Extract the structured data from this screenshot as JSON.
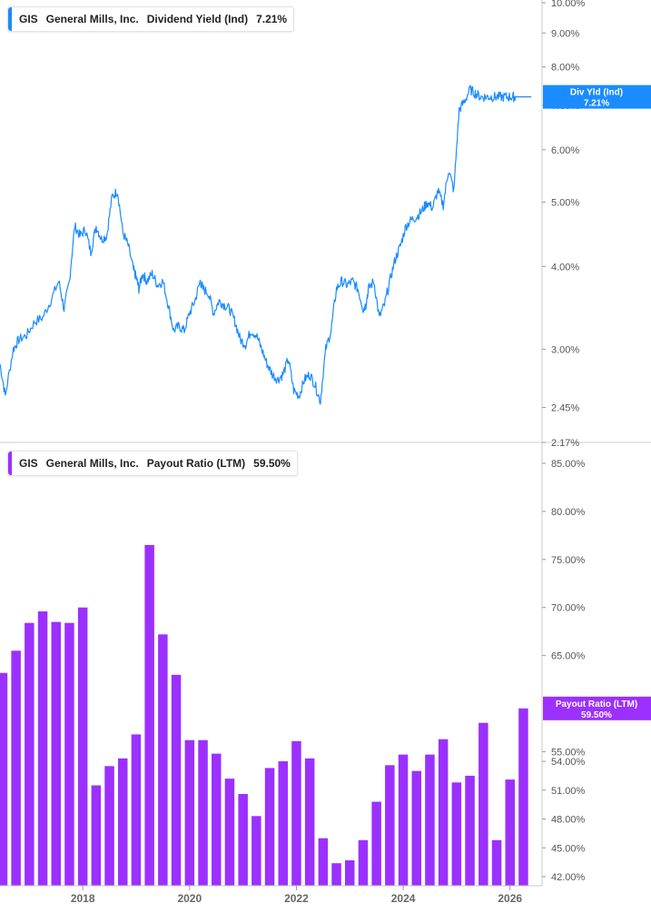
{
  "top_legend": {
    "ticker": "GIS",
    "company": "General Mills, Inc.",
    "metric": "Dividend Yield (Ind)",
    "value": "7.21%"
  },
  "bottom_legend": {
    "ticker": "GIS",
    "company": "General Mills, Inc.",
    "metric": "Payout Ratio (LTM)",
    "value": "59.50%"
  },
  "colors": {
    "yield_line": "#1a8cff",
    "payout_bar": "#9b30ff",
    "axis": "#bbbbbb"
  },
  "chart_data": [
    {
      "type": "line",
      "title": "GIS General Mills, Inc. Dividend Yield (Ind) 7.21%",
      "scale": "log",
      "ylim": [
        2.17,
        10.0
      ],
      "ytick_labels": [
        "10.00%",
        "9.00%",
        "8.00%",
        "7.00%",
        "6.00%",
        "5.00%",
        "4.00%",
        "3.00%",
        "2.45%",
        "2.17%"
      ],
      "ytick_values": [
        10.0,
        9.0,
        8.0,
        7.0,
        6.0,
        5.0,
        4.0,
        3.0,
        2.45,
        2.17
      ],
      "xlim": [
        2016.45,
        2026.6
      ],
      "badge": {
        "label": "Div Yld (Ind)",
        "value": "7.21%"
      },
      "series": [
        {
          "x": [
            2016.45,
            2016.55,
            2016.7,
            2016.8,
            2016.95,
            2017.1,
            2017.25,
            2017.4,
            2017.55,
            2017.65,
            2017.75,
            2017.85,
            2017.95,
            2018.05,
            2018.15,
            2018.25,
            2018.35,
            2018.45,
            2018.55,
            2018.65,
            2018.75,
            2018.85,
            2018.95,
            2019.0,
            2019.05,
            2019.12,
            2019.2,
            2019.3,
            2019.4,
            2019.5,
            2019.6,
            2019.7,
            2019.8,
            2019.9,
            2020.0,
            2020.1,
            2020.2,
            2020.25,
            2020.35,
            2020.45,
            2020.55,
            2020.65,
            2020.75,
            2020.85,
            2020.95,
            2021.05,
            2021.15,
            2021.25,
            2021.35,
            2021.45,
            2021.55,
            2021.65,
            2021.75,
            2021.85,
            2021.95,
            2022.05,
            2022.15,
            2022.25,
            2022.35,
            2022.45,
            2022.55,
            2022.65,
            2022.75,
            2022.85,
            2022.95,
            2023.05,
            2023.15,
            2023.25,
            2023.3,
            2023.35,
            2023.45,
            2023.55,
            2023.65,
            2023.75,
            2023.85,
            2023.95,
            2024.05,
            2024.15,
            2024.25,
            2024.35,
            2024.45,
            2024.55,
            2024.65,
            2024.75,
            2024.85,
            2024.95,
            2025.05,
            2025.15,
            2025.25,
            2025.35,
            2025.45,
            2025.55,
            2025.65,
            2025.75,
            2025.85,
            2025.95,
            2026.05,
            2026.1,
            2026.15,
            2026.2,
            2026.25,
            2026.3,
            2026.35,
            2026.4
          ],
          "y": [
            2.85,
            2.55,
            3.0,
            3.1,
            3.15,
            3.3,
            3.35,
            3.55,
            3.8,
            3.45,
            3.8,
            4.6,
            4.45,
            4.55,
            4.2,
            4.6,
            4.4,
            4.45,
            5.1,
            5.2,
            4.5,
            4.3,
            3.95,
            3.85,
            3.7,
            3.9,
            3.8,
            3.9,
            3.75,
            3.8,
            3.5,
            3.2,
            3.25,
            3.2,
            3.4,
            3.55,
            3.8,
            3.7,
            3.65,
            3.4,
            3.55,
            3.5,
            3.45,
            3.3,
            3.1,
            3.05,
            3.2,
            3.15,
            3.0,
            2.85,
            2.75,
            2.7,
            2.75,
            2.9,
            2.6,
            2.55,
            2.7,
            2.75,
            2.65,
            2.5,
            3.0,
            3.2,
            3.7,
            3.8,
            3.75,
            3.8,
            3.7,
            3.45,
            3.5,
            3.7,
            3.8,
            3.35,
            3.5,
            3.8,
            4.1,
            4.3,
            4.6,
            4.7,
            4.75,
            4.85,
            5.0,
            4.9,
            5.2,
            4.95,
            5.6,
            5.2,
            6.9,
            7.1,
            7.4,
            7.3,
            7.21,
            7.21,
            7.21,
            7.21,
            7.21,
            7.21,
            7.21,
            7.21,
            7.21,
            7.21,
            7.21,
            7.21,
            7.21,
            7.21
          ]
        }
      ]
    },
    {
      "type": "bar",
      "title": "GIS General Mills, Inc. Payout Ratio (LTM) 59.50%",
      "ylim": [
        42.0,
        85.0
      ],
      "ytick_labels": [
        "85.00%",
        "80.00%",
        "75.00%",
        "70.00%",
        "65.00%",
        "55.00%",
        "54.00%",
        "51.00%",
        "48.00%",
        "45.00%",
        "42.00%"
      ],
      "ytick_values": [
        85.0,
        80.0,
        75.0,
        70.0,
        65.0,
        55.0,
        54.0,
        51.0,
        48.0,
        45.0,
        42.0
      ],
      "xtick_labels": [
        "2018",
        "2020",
        "2022",
        "2024",
        "2026"
      ],
      "xtick_values": [
        2018,
        2020,
        2022,
        2024,
        2026
      ],
      "xlim": [
        2016.45,
        2026.6
      ],
      "badge": {
        "label": "Payout Ratio (LTM)",
        "value": "59.50%"
      },
      "series": [
        {
          "x": [
            2016.5,
            2016.75,
            2017.0,
            2017.25,
            2017.5,
            2017.75,
            2018.0,
            2018.25,
            2018.5,
            2018.75,
            2019.0,
            2019.25,
            2019.5,
            2019.75,
            2020.0,
            2020.25,
            2020.5,
            2020.75,
            2021.0,
            2021.25,
            2021.5,
            2021.75,
            2022.0,
            2022.25,
            2022.5,
            2022.75,
            2023.0,
            2023.25,
            2023.5,
            2023.75,
            2024.0,
            2024.25,
            2024.5,
            2024.75,
            2025.0,
            2025.25,
            2025.5,
            2025.75,
            2026.0,
            2026.25
          ],
          "values": [
            63.2,
            65.5,
            68.4,
            69.6,
            68.5,
            68.4,
            70.0,
            51.5,
            53.5,
            54.3,
            56.8,
            76.5,
            67.2,
            63.0,
            56.2,
            56.2,
            54.8,
            52.2,
            50.6,
            48.3,
            53.3,
            54.0,
            56.1,
            54.3,
            46.0,
            43.4,
            43.7,
            45.8,
            49.8,
            53.6,
            54.7,
            53.0,
            54.7,
            56.3,
            51.8,
            52.5,
            58.0,
            45.8,
            52.1,
            59.5
          ]
        }
      ]
    }
  ]
}
